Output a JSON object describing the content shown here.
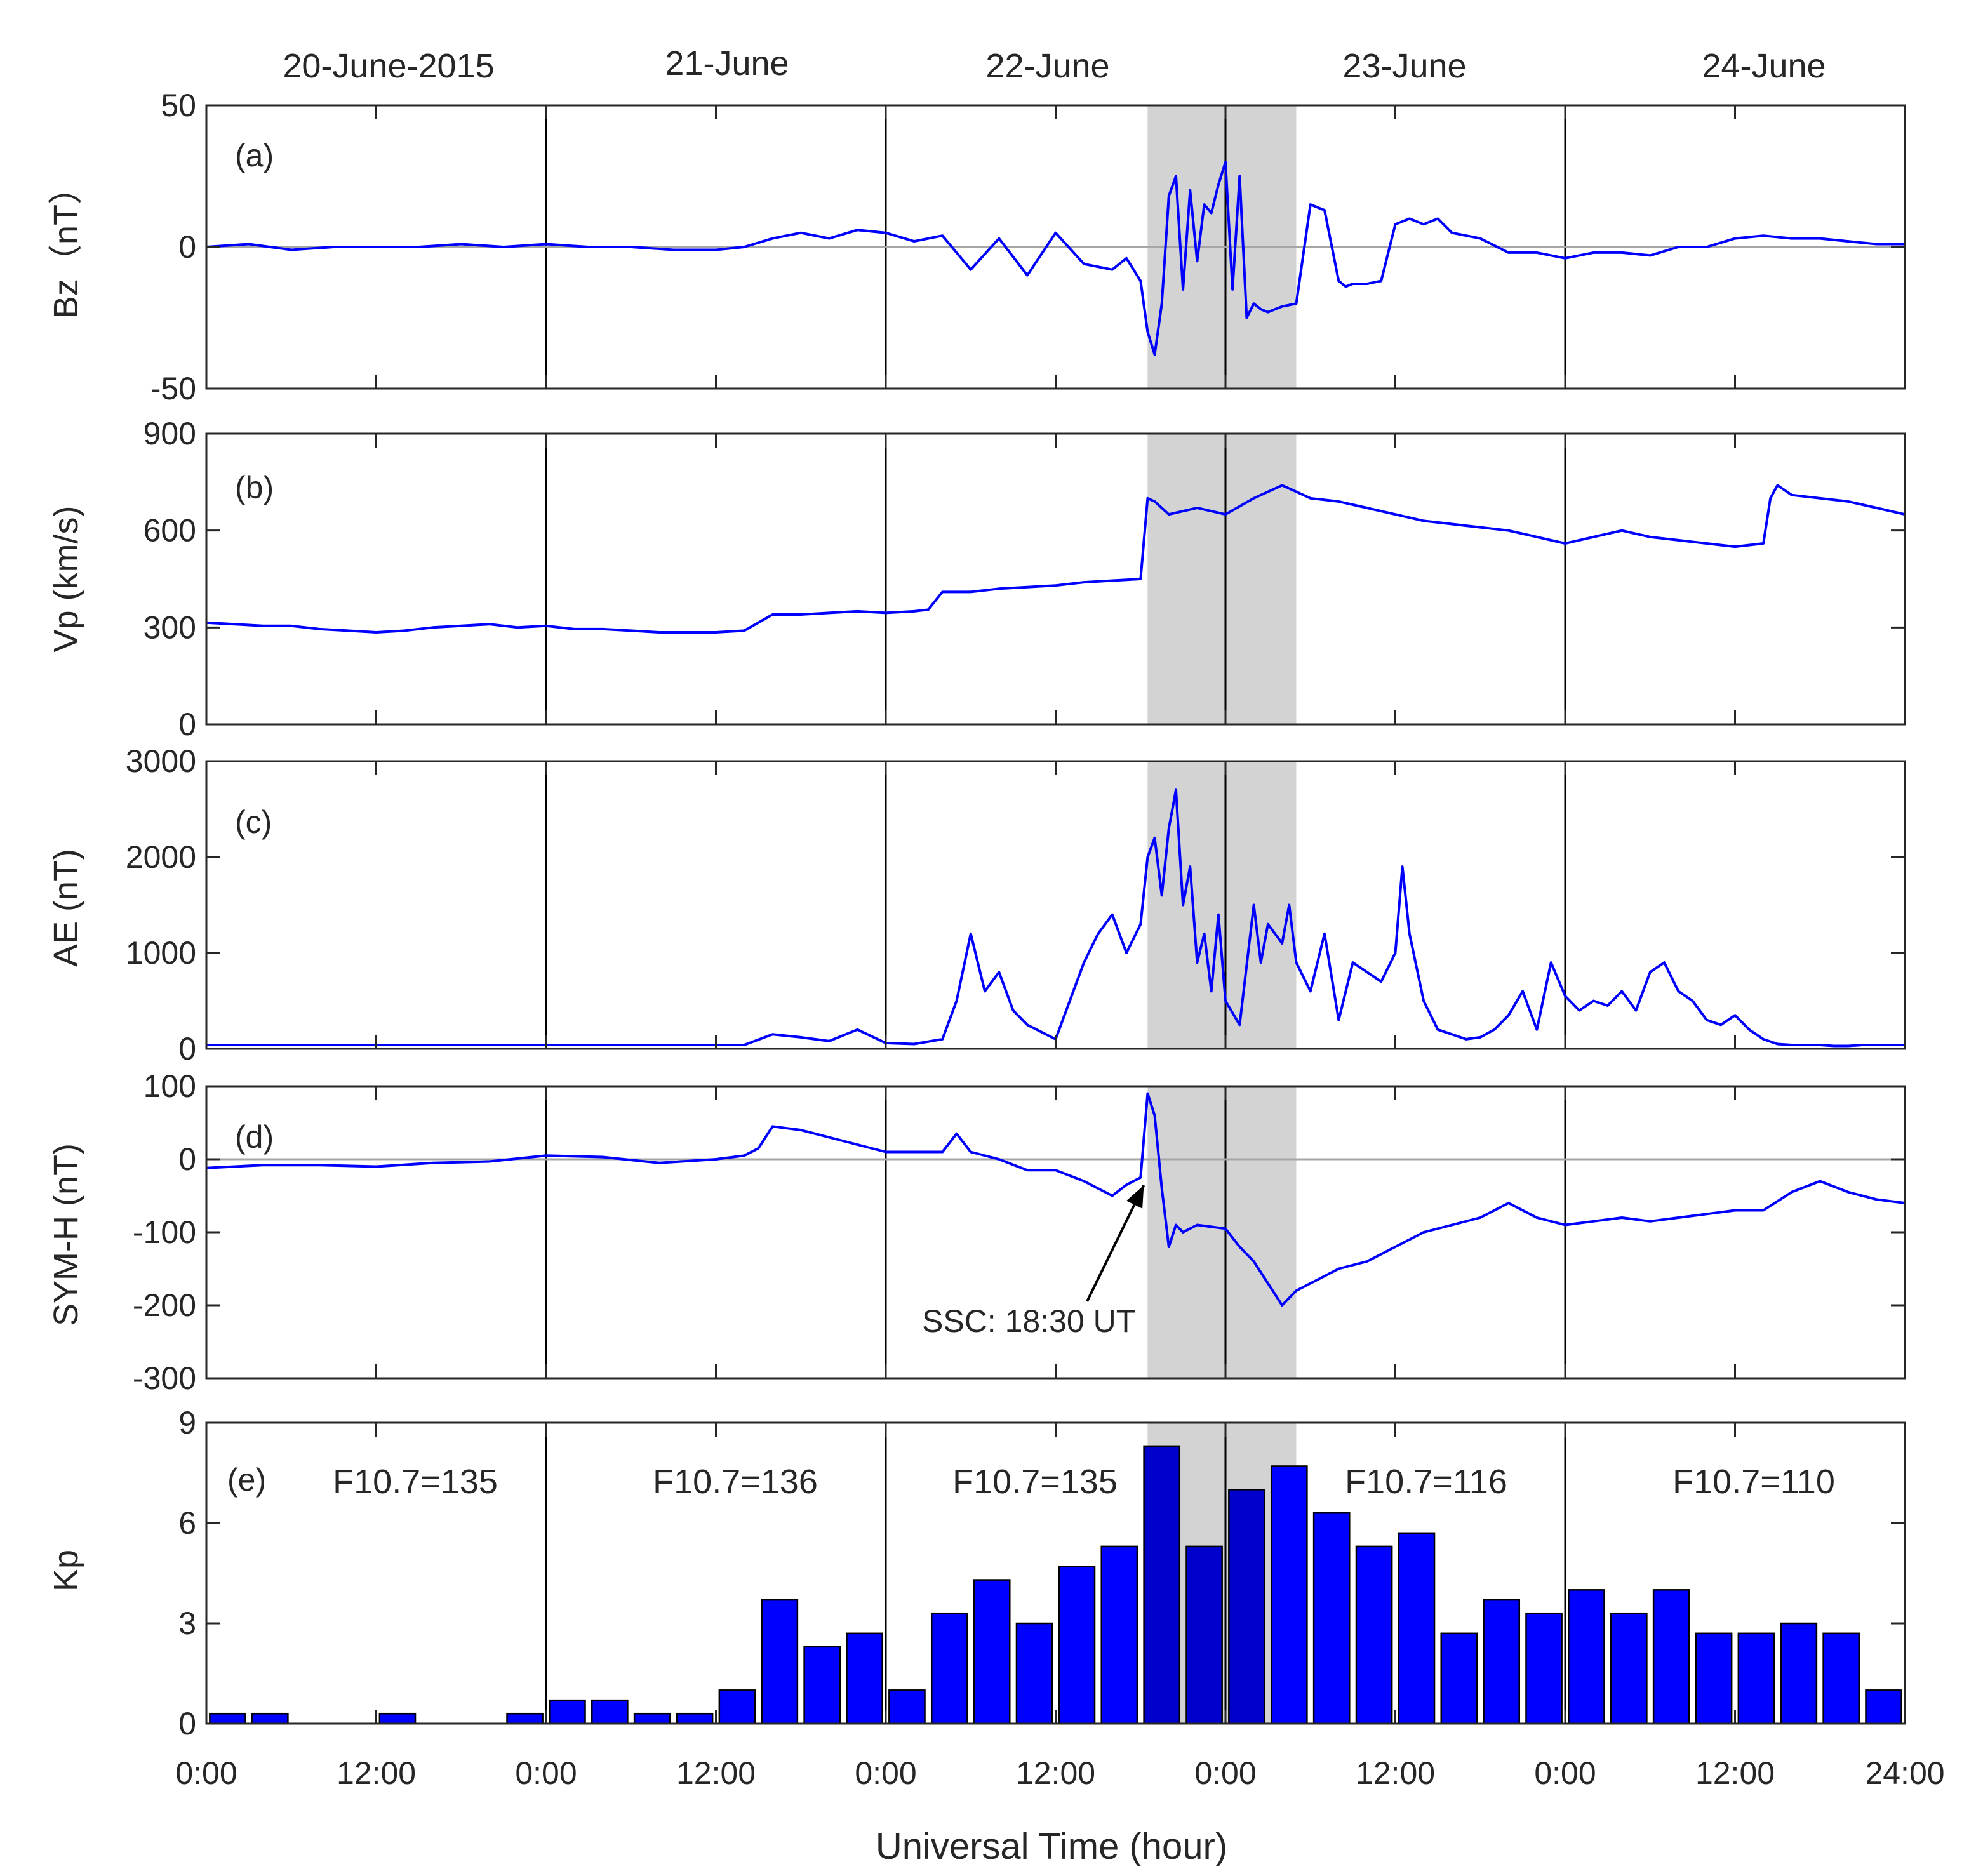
{
  "figure": {
    "xlabel": "Universal Time (hour)",
    "x_tick_labels": [
      "0:00",
      "12:00",
      "0:00",
      "12:00",
      "0:00",
      "12:00",
      "0:00",
      "12:00",
      "0:00",
      "12:00",
      "24:00"
    ],
    "date_labels": [
      "20-June-2015",
      "21-June",
      "22-June",
      "23-June",
      "24-June"
    ],
    "shaded_interval_hours": [
      66.5,
      77
    ],
    "annotation": {
      "text": "SSC: 18:30 UT",
      "target": {
        "x": 66.5,
        "y": -20
      }
    },
    "colors": {
      "series": "#0000ff",
      "shade": "#d3d3d3",
      "zero_line": "#a6a6a6",
      "day_line": "#000000",
      "bar_edge": "#000000"
    }
  },
  "chart_data": [
    {
      "type": "line",
      "panel_label": "(a)",
      "ylabel": "Bz（nT）",
      "ylim": [
        -50,
        50
      ],
      "yticks": [
        "50",
        "0",
        "-50"
      ],
      "x_unit": "hours since 20-June-2015 00:00 UT",
      "x": [
        0,
        3,
        6,
        9,
        12,
        15,
        18,
        21,
        24,
        27,
        30,
        33,
        36,
        38,
        40,
        42,
        44,
        46,
        48,
        50,
        52,
        54,
        56,
        58,
        60,
        62,
        64,
        65,
        66,
        66.5,
        67,
        67.5,
        68,
        68.5,
        69,
        69.5,
        70,
        70.5,
        71,
        71.5,
        72,
        72.5,
        73,
        73.5,
        74,
        74.5,
        75,
        75.5,
        76,
        77,
        78,
        79,
        80,
        80.5,
        81,
        82,
        83,
        84,
        85,
        86,
        87,
        88,
        90,
        92,
        94,
        96,
        98,
        100,
        102,
        104,
        106,
        108,
        110,
        112,
        114,
        116,
        118,
        120
      ],
      "values": [
        0,
        1,
        -1,
        0,
        0,
        0,
        1,
        0,
        1,
        0,
        0,
        -1,
        -1,
        0,
        3,
        5,
        3,
        6,
        5,
        2,
        4,
        -8,
        3,
        -10,
        5,
        -6,
        -8,
        -4,
        -12,
        -30,
        -38,
        -20,
        18,
        25,
        -15,
        20,
        -5,
        15,
        12,
        22,
        30,
        -15,
        25,
        -25,
        -20,
        -22,
        -23,
        -22,
        -21,
        -20,
        15,
        13,
        -12,
        -14,
        -13,
        -13,
        -12,
        8,
        10,
        8,
        10,
        5,
        3,
        -2,
        -2,
        -4,
        -2,
        -2,
        -3,
        0,
        0,
        3,
        4,
        3,
        3,
        2,
        1,
        1
      ]
    },
    {
      "type": "line",
      "panel_label": "(b)",
      "ylabel": "Vp (km/s)",
      "ylim": [
        0,
        900
      ],
      "yticks": [
        "900",
        "600",
        "300",
        "0"
      ],
      "x_unit": "hours since 20-June-2015 00:00 UT",
      "x": [
        0,
        2,
        4,
        6,
        8,
        10,
        12,
        14,
        16,
        18,
        20,
        22,
        24,
        26,
        28,
        30,
        32,
        34,
        36,
        38,
        40,
        42,
        44,
        46,
        48,
        50,
        51,
        52,
        54,
        56,
        58,
        60,
        62,
        64,
        66,
        66.5,
        67,
        68,
        70,
        72,
        74,
        76,
        77,
        78,
        80,
        82,
        84,
        86,
        88,
        90,
        92,
        94,
        96,
        98,
        100,
        102,
        104,
        106,
        108,
        110,
        110.5,
        111,
        112,
        114,
        116,
        118,
        120
      ],
      "values": [
        315,
        310,
        305,
        305,
        295,
        290,
        285,
        290,
        300,
        305,
        310,
        300,
        305,
        295,
        295,
        290,
        285,
        285,
        285,
        290,
        340,
        340,
        345,
        350,
        345,
        350,
        355,
        410,
        410,
        420,
        425,
        430,
        440,
        445,
        450,
        700,
        690,
        650,
        670,
        650,
        700,
        740,
        720,
        700,
        690,
        670,
        650,
        630,
        620,
        610,
        600,
        580,
        560,
        580,
        600,
        580,
        570,
        560,
        550,
        560,
        700,
        740,
        710,
        700,
        690,
        670,
        650
      ]
    },
    {
      "type": "line",
      "panel_label": "(c)",
      "ylabel": "AE (nT)",
      "ylim": [
        0,
        3000
      ],
      "yticks": [
        "3000",
        "2000",
        "1000",
        "0"
      ],
      "x_unit": "hours since 20-June-2015 00:00 UT",
      "x": [
        0,
        6,
        12,
        18,
        24,
        30,
        36,
        38,
        40,
        42,
        44,
        46,
        48,
        50,
        52,
        53,
        54,
        55,
        56,
        57,
        58,
        60,
        61,
        62,
        63,
        64,
        65,
        66,
        66.5,
        67,
        67.5,
        68,
        68.5,
        69,
        69.5,
        70,
        70.5,
        71,
        71.5,
        72,
        73,
        74,
        74.5,
        75,
        76,
        76.5,
        77,
        78,
        79,
        80,
        81,
        82,
        83,
        84,
        84.5,
        85,
        86,
        87,
        88,
        89,
        90,
        91,
        92,
        93,
        94,
        95,
        96,
        97,
        98,
        99,
        100,
        101,
        102,
        103,
        104,
        105,
        106,
        107,
        108,
        109,
        110,
        111,
        112,
        113,
        114,
        115,
        116,
        117,
        118,
        119,
        120
      ],
      "values": [
        40,
        40,
        40,
        40,
        40,
        40,
        40,
        40,
        150,
        120,
        80,
        200,
        60,
        50,
        100,
        500,
        1200,
        600,
        800,
        400,
        250,
        100,
        500,
        900,
        1200,
        1400,
        1000,
        1300,
        2000,
        2200,
        1600,
        2300,
        2700,
        1500,
        1900,
        900,
        1200,
        600,
        1400,
        500,
        250,
        1500,
        900,
        1300,
        1100,
        1500,
        900,
        600,
        1200,
        300,
        900,
        800,
        700,
        1000,
        1900,
        1200,
        500,
        200,
        150,
        100,
        120,
        200,
        350,
        600,
        200,
        900,
        550,
        400,
        500,
        450,
        600,
        400,
        800,
        900,
        600,
        500,
        300,
        250,
        350,
        200,
        100,
        50,
        40,
        40,
        40,
        30,
        30,
        40,
        40,
        40,
        40
      ]
    },
    {
      "type": "line",
      "panel_label": "(d)",
      "ylabel": "SYM-H (nT)",
      "ylim": [
        -300,
        100
      ],
      "yticks": [
        "100",
        "0",
        "-100",
        "-200",
        "-300"
      ],
      "zero_line": true,
      "x_unit": "hours since 20-June-2015 00:00 UT",
      "x": [
        0,
        4,
        8,
        12,
        16,
        20,
        24,
        28,
        32,
        36,
        38,
        39,
        40,
        42,
        44,
        46,
        48,
        50,
        52,
        53,
        54,
        56,
        58,
        60,
        62,
        63,
        64,
        65,
        66,
        66.5,
        67,
        67.5,
        68,
        68.5,
        69,
        70,
        72,
        73,
        74,
        75,
        76,
        77,
        78,
        80,
        82,
        84,
        86,
        88,
        90,
        92,
        94,
        96,
        98,
        100,
        102,
        104,
        106,
        108,
        110,
        112,
        114,
        116,
        118,
        120
      ],
      "values": [
        -12,
        -8,
        -8,
        -10,
        -5,
        -3,
        5,
        3,
        -5,
        0,
        5,
        15,
        45,
        40,
        30,
        20,
        10,
        10,
        10,
        35,
        10,
        0,
        -15,
        -15,
        -30,
        -40,
        -50,
        -35,
        -25,
        90,
        60,
        -40,
        -120,
        -90,
        -100,
        -90,
        -95,
        -120,
        -140,
        -170,
        -200,
        -180,
        -170,
        -150,
        -140,
        -120,
        -100,
        -90,
        -80,
        -60,
        -80,
        -90,
        -85,
        -80,
        -85,
        -80,
        -75,
        -70,
        -70,
        -45,
        -30,
        -45,
        -55,
        -60
      ]
    },
    {
      "type": "bar",
      "panel_label": "(e)",
      "ylabel": "Kp",
      "ylim": [
        0,
        9
      ],
      "yticks": [
        "9",
        "6",
        "3",
        "0"
      ],
      "x_unit": "3-hour intervals from 20-June-2015 00:00 UT",
      "values": [
        0.3,
        0.3,
        0,
        0,
        0.3,
        0,
        0,
        0.3,
        0.7,
        0.7,
        0.3,
        0.3,
        1.0,
        3.7,
        2.3,
        2.7,
        1.0,
        3.3,
        4.3,
        3.0,
        4.7,
        5.3,
        8.3,
        5.3,
        7.0,
        7.7,
        6.3,
        5.3,
        5.7,
        2.7,
        3.7,
        3.3,
        4.0,
        3.3,
        4.0,
        2.7,
        2.7,
        3.0,
        2.7,
        1.0
      ],
      "dark_bars": [
        22,
        23,
        24
      ],
      "f107_labels": [
        "F10.7=135",
        "F10.7=136",
        "F10.7=135",
        "F10.7=116",
        "F10.7=110"
      ]
    }
  ]
}
